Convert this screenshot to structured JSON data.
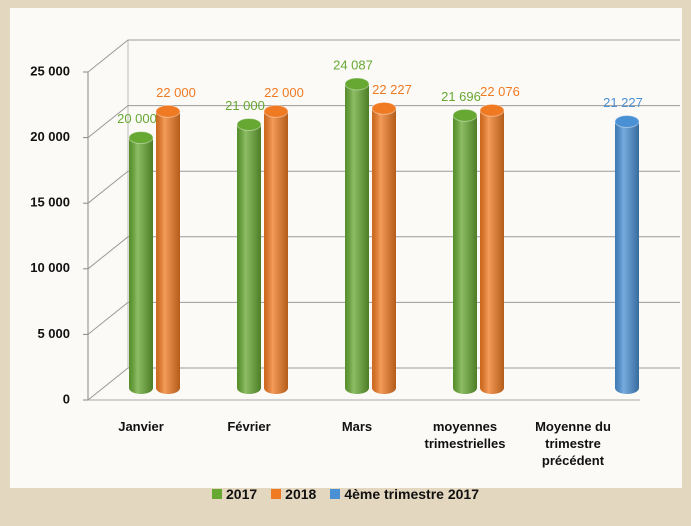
{
  "chart_data": {
    "type": "bar3d",
    "categories": [
      "Janvier",
      "Février",
      "Mars",
      "moyennes trimestrielles",
      "Moyenne du trimestre précédent"
    ],
    "series": [
      {
        "name": "2017",
        "color": "#66a832",
        "values": [
          20000,
          21000,
          24087,
          21696,
          null
        ],
        "value_labels": [
          "20 000",
          "21 000",
          "24 087",
          "21 696",
          null
        ]
      },
      {
        "name": "2018",
        "color": "#f07a22",
        "values": [
          22000,
          22000,
          22227,
          22076,
          null
        ],
        "value_labels": [
          "22 000",
          "22 000",
          "22 227",
          "22 076",
          null
        ]
      },
      {
        "name": "4ème trimestre 2017",
        "color": "#4a90d4",
        "values": [
          null,
          null,
          null,
          null,
          21227
        ],
        "value_labels": [
          null,
          null,
          null,
          null,
          "21 227"
        ]
      }
    ],
    "ylim": [
      0,
      25000
    ],
    "yticks": [
      0,
      {
        "value": 5000,
        "label": "5 000"
      },
      {
        "value": 10000,
        "label": "10 000"
      },
      {
        "value": 15000,
        "label": "15 000"
      },
      {
        "value": 20000,
        "label": "20 000"
      },
      {
        "value": 25000,
        "label": "25 000"
      }
    ],
    "grid": true
  }
}
